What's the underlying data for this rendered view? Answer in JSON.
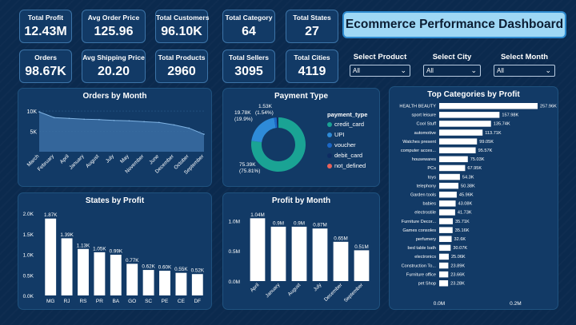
{
  "header": {
    "title": "Ecommerce Performance Dashboard"
  },
  "kpis": [
    {
      "label": "Total Profit",
      "value": "12.43M"
    },
    {
      "label": "Avg Order Price",
      "value": "125.96"
    },
    {
      "label": "Total Customers",
      "value": "96.10K"
    },
    {
      "label": "Total Category",
      "value": "64"
    },
    {
      "label": "Total States",
      "value": "27"
    },
    {
      "label": "Orders",
      "value": "98.67K"
    },
    {
      "label": "Avg Shipping Price",
      "value": "20.20"
    },
    {
      "label": "Total Products",
      "value": "2960"
    },
    {
      "label": "Total Sellers",
      "value": "3095"
    },
    {
      "label": "Total Cities",
      "value": "4119"
    }
  ],
  "slicers": [
    {
      "label": "Select Product",
      "value": "All"
    },
    {
      "label": "Select City",
      "value": "All"
    },
    {
      "label": "Select Month",
      "value": "All"
    }
  ],
  "chart_data": [
    {
      "id": "orders_by_month",
      "type": "area",
      "title": "Orders by Month",
      "categories": [
        "March",
        "February",
        "April",
        "January",
        "August",
        "July",
        "May",
        "November",
        "June",
        "December",
        "October",
        "September"
      ],
      "values": [
        9.8,
        8.4,
        8.2,
        8.0,
        7.9,
        7.7,
        7.6,
        7.4,
        7.2,
        6.6,
        5.8,
        4.3
      ],
      "yticks": [
        "10K",
        "5K"
      ],
      "ytick_values": [
        10,
        5
      ],
      "ylim": [
        0,
        11
      ]
    },
    {
      "id": "payment_type",
      "type": "pie",
      "title": "Payment Type",
      "legend_title": "payment_type",
      "labels": [
        "credit_card",
        "UPI",
        "voucher",
        "debit_card",
        "not_defined"
      ],
      "values": [
        75.39,
        19.78,
        1.53,
        1.0,
        0.01
      ],
      "percents": [
        75.81,
        19.9,
        1.54,
        1.0,
        0.01
      ],
      "colors": [
        "#1aa394",
        "#2e8bd8",
        "#1b67c7",
        "#0e2c63",
        "#e8625a"
      ],
      "data_labels": [
        {
          "text": "75.39K",
          "sub": "(75.81%)"
        },
        {
          "text": "19.78K",
          "sub": "(19.9%)"
        },
        {
          "text": "1.53K",
          "sub": "(1.54%)"
        }
      ]
    },
    {
      "id": "top_categories",
      "type": "bar",
      "orientation": "horizontal",
      "title": "Top Categories by Profit",
      "categories": [
        "HEALTH BEAUTY",
        "sport leisure",
        "Cool Stuff",
        "automotive",
        "Watches present",
        "computer acces...",
        "housewares",
        "PCs",
        "toys",
        "telephony",
        "Garden tools",
        "babies",
        "electrostile",
        "Furniture Decor...",
        "Games consoles",
        "perfumery",
        "bed table bath",
        "electronics",
        "Construction To...",
        "Furniture office",
        "pet Shop"
      ],
      "values": [
        257.96,
        157.98,
        135.74,
        113.71,
        99.05,
        95.57,
        75.03,
        67.95,
        54.3,
        50.38,
        45.96,
        43.08,
        41.73,
        35.71,
        35.16,
        32.6,
        30.07,
        25.06,
        23.89,
        23.66,
        23.28
      ],
      "data_labels": [
        "257.96K",
        "157.98K",
        "135.74K",
        "113.71K",
        "99.05K",
        "95.57K",
        "75.03K",
        "67.95K",
        "54.3K",
        "50.38K",
        "45.96K",
        "43.08K",
        "41.73K",
        "35.71K",
        "35.16K",
        "32.6K",
        "30.07K",
        "25.06K",
        "23.89K",
        "23.66K",
        "23.28K"
      ],
      "xticks": [
        "0.0M",
        "0.2M"
      ],
      "xtick_values": [
        0,
        200
      ],
      "xlim": [
        0,
        260
      ]
    },
    {
      "id": "states_by_profit",
      "type": "bar",
      "title": "States by Profit",
      "categories": [
        "MG",
        "RJ",
        "RS",
        "PR",
        "BA",
        "GO",
        "SC",
        "PE",
        "CE",
        "DF"
      ],
      "values": [
        1.87,
        1.39,
        1.13,
        1.05,
        0.99,
        0.77,
        0.62,
        0.6,
        0.55,
        0.52
      ],
      "data_labels": [
        "1.87K",
        "1.39K",
        "1.13K",
        "1.05K",
        "0.99K",
        "0.77K",
        "0.62K",
        "0.60K",
        "0.55K",
        "0.52K"
      ],
      "yticks": [
        "2.0K",
        "1.5K",
        "1.0K",
        "0.5K",
        "0.0K"
      ],
      "ytick_values": [
        2.0,
        1.5,
        1.0,
        0.5,
        0.0
      ],
      "ylim": [
        0,
        2.0
      ]
    },
    {
      "id": "profit_by_month",
      "type": "bar",
      "title": "Profit by Month",
      "categories": [
        "April",
        "January",
        "August",
        "July",
        "December",
        "September"
      ],
      "values": [
        1.04,
        0.9,
        0.9,
        0.87,
        0.65,
        0.51
      ],
      "data_labels": [
        "1.04M",
        "0.9M",
        "0.9M",
        "0.87M",
        "0.65M",
        "0.51M"
      ],
      "yticks": [
        "1.0M",
        "0.5M",
        "0.0M"
      ],
      "ytick_values": [
        1.0,
        0.5,
        0.0
      ],
      "ylim": [
        0,
        1.15
      ]
    }
  ]
}
